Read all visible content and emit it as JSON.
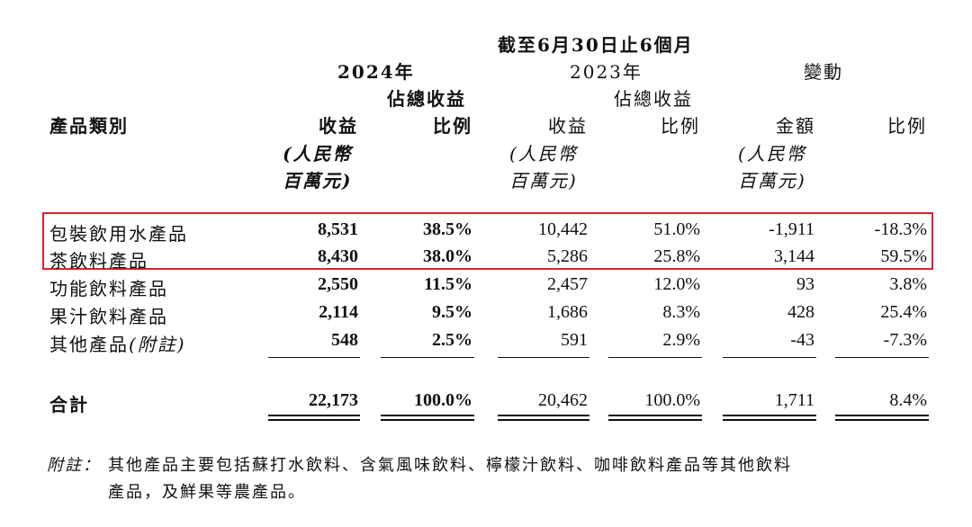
{
  "period_title": "截至6月30日止6個月",
  "year_2024": "2024年",
  "year_2023": "2023年",
  "change_heading": "變動",
  "headers": {
    "category": "產品類別",
    "revenue": "收益",
    "share_line1": "佔總收益",
    "share_line2": "比例",
    "amount": "金額",
    "ratio": "比例",
    "unit_line1": "(人民幣",
    "unit_line2": "百萬元)"
  },
  "rows": [
    {
      "name": "包裝飲用水產品",
      "rev2024": "8,531",
      "pct2024": "38.5%",
      "rev2023": "10,442",
      "pct2023": "51.0%",
      "chg_amt": "-1,911",
      "chg_pct": "-18.3%"
    },
    {
      "name": "茶飲料產品",
      "rev2024": "8,430",
      "pct2024": "38.0%",
      "rev2023": "5,286",
      "pct2023": "25.8%",
      "chg_amt": "3,144",
      "chg_pct": "59.5%"
    },
    {
      "name": "功能飲料產品",
      "rev2024": "2,550",
      "pct2024": "11.5%",
      "rev2023": "2,457",
      "pct2023": "12.0%",
      "chg_amt": "93",
      "chg_pct": "3.8%"
    },
    {
      "name": "果汁飲料產品",
      "rev2024": "2,114",
      "pct2024": "9.5%",
      "rev2023": "1,686",
      "pct2023": "8.3%",
      "chg_amt": "428",
      "chg_pct": "25.4%"
    },
    {
      "name": "其他產品",
      "name_suffix": "(附註)",
      "rev2024": "548",
      "pct2024": "2.5%",
      "rev2023": "591",
      "pct2023": "2.9%",
      "chg_amt": "-43",
      "chg_pct": "-7.3%"
    }
  ],
  "total": {
    "name": "合計",
    "rev2024": "22,173",
    "pct2024": "100.0%",
    "rev2023": "20,462",
    "pct2023": "100.0%",
    "chg_amt": "1,711",
    "chg_pct": "8.4%"
  },
  "note": {
    "label": "附註：",
    "line1": "其他產品主要包括蘇打水飲料、含氣風味飲料、檸檬汁飲料、咖啡飲料產品等其他飲料",
    "line2": "產品，及鮮果等農產品。"
  },
  "colors": {
    "highlight_border": "#d9232d"
  }
}
